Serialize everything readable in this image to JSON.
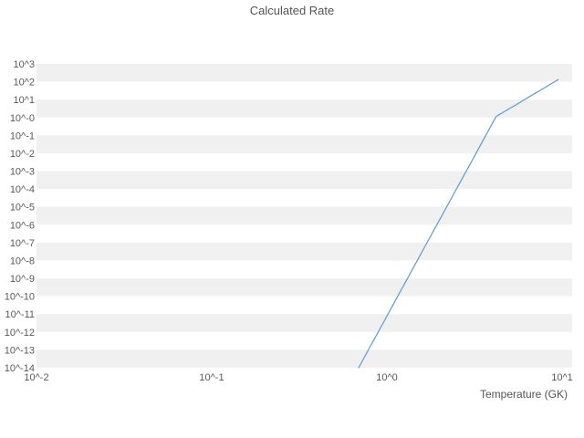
{
  "chart_data": {
    "type": "line",
    "title": "Calculated Rate",
    "xlabel": "Temperature (GK)",
    "ylabel": "",
    "x_scale": "log",
    "y_scale": "log",
    "grid": "horizontal-bands",
    "legend": "none",
    "band_colors": [
      "#f0f0f0",
      "#ffffff"
    ],
    "line_color": "#5b9bd5",
    "x_tick_labels": [
      "10^-2",
      "10^-1",
      "10^0",
      "10^1"
    ],
    "x_tick_log10": [
      -2,
      -1,
      0,
      1
    ],
    "y_tick_labels": [
      "10^3",
      "10^2",
      "10^1",
      "10^-0",
      "10^-1",
      "10^-2",
      "10^-3",
      "10^-4",
      "10^-5",
      "10^-6",
      "10^-7",
      "10^-8",
      "10^-9",
      "10^-10",
      "10^-11",
      "10^-12",
      "10^-13",
      "10^-14"
    ],
    "y_tick_log10": [
      3,
      2,
      1,
      0,
      -1,
      -2,
      -3,
      -4,
      -5,
      -6,
      -7,
      -8,
      -9,
      -10,
      -11,
      -12,
      -13,
      -14
    ],
    "xlim_log10": [
      -2,
      1.06
    ],
    "ylim_log10": [
      -14,
      3
    ],
    "series": [
      {
        "name": "Calculated Rate",
        "x_GK": [
          0.69,
          0.8,
          0.9,
          1.0,
          1.2,
          1.4,
          1.7,
          2.0,
          2.4,
          2.8,
          3.2,
          3.6,
          4.0,
          4.2,
          4.5,
          5.0,
          5.5,
          6.0,
          6.5,
          7.0,
          7.5,
          8.0,
          8.5,
          9.0,
          9.5
        ],
        "rate_log10": [
          -14.0,
          -12.84,
          -11.93,
          -11.11,
          -9.69,
          -8.49,
          -6.98,
          -5.72,
          -4.3,
          -3.1,
          -2.07,
          -1.15,
          -0.33,
          0.05,
          0.23,
          0.5,
          0.73,
          0.96,
          1.16,
          1.35,
          1.52,
          1.68,
          1.84,
          1.98,
          2.12
        ]
      }
    ]
  }
}
